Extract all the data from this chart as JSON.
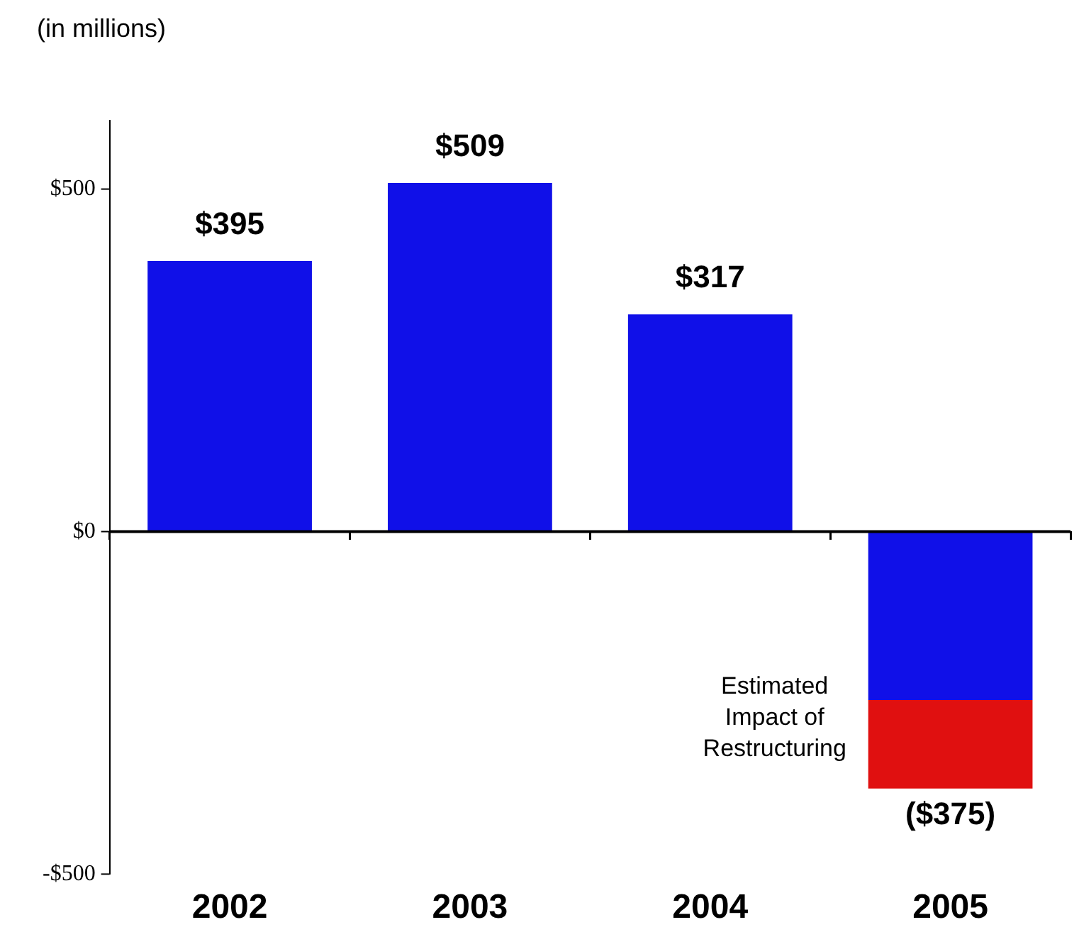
{
  "chart_data": {
    "type": "bar",
    "ylabel": "(in millions)",
    "categories": [
      "2002",
      "2003",
      "2004",
      "2005"
    ],
    "stacked": true,
    "series": [
      {
        "color": "#1010e8",
        "values": [
          395,
          509,
          317,
          -246
        ]
      },
      {
        "color": "#e01010",
        "values": [
          null,
          null,
          null,
          -129
        ]
      }
    ],
    "totals": [
      "$395",
      "$509",
      "$317",
      "($375)"
    ],
    "annotations": [
      "Estimated Impact of Restructuring"
    ],
    "ylim": [
      -500,
      600
    ],
    "yticks": [
      {
        "value": 500,
        "label": "$500"
      },
      {
        "value": 0,
        "label": "$0"
      },
      {
        "value": -500,
        "label": "-$500"
      }
    ],
    "ref_lines": [
      {
        "axis": "y",
        "value": 0,
        "color": "#000000"
      }
    ],
    "grid": false,
    "legend": false
  }
}
